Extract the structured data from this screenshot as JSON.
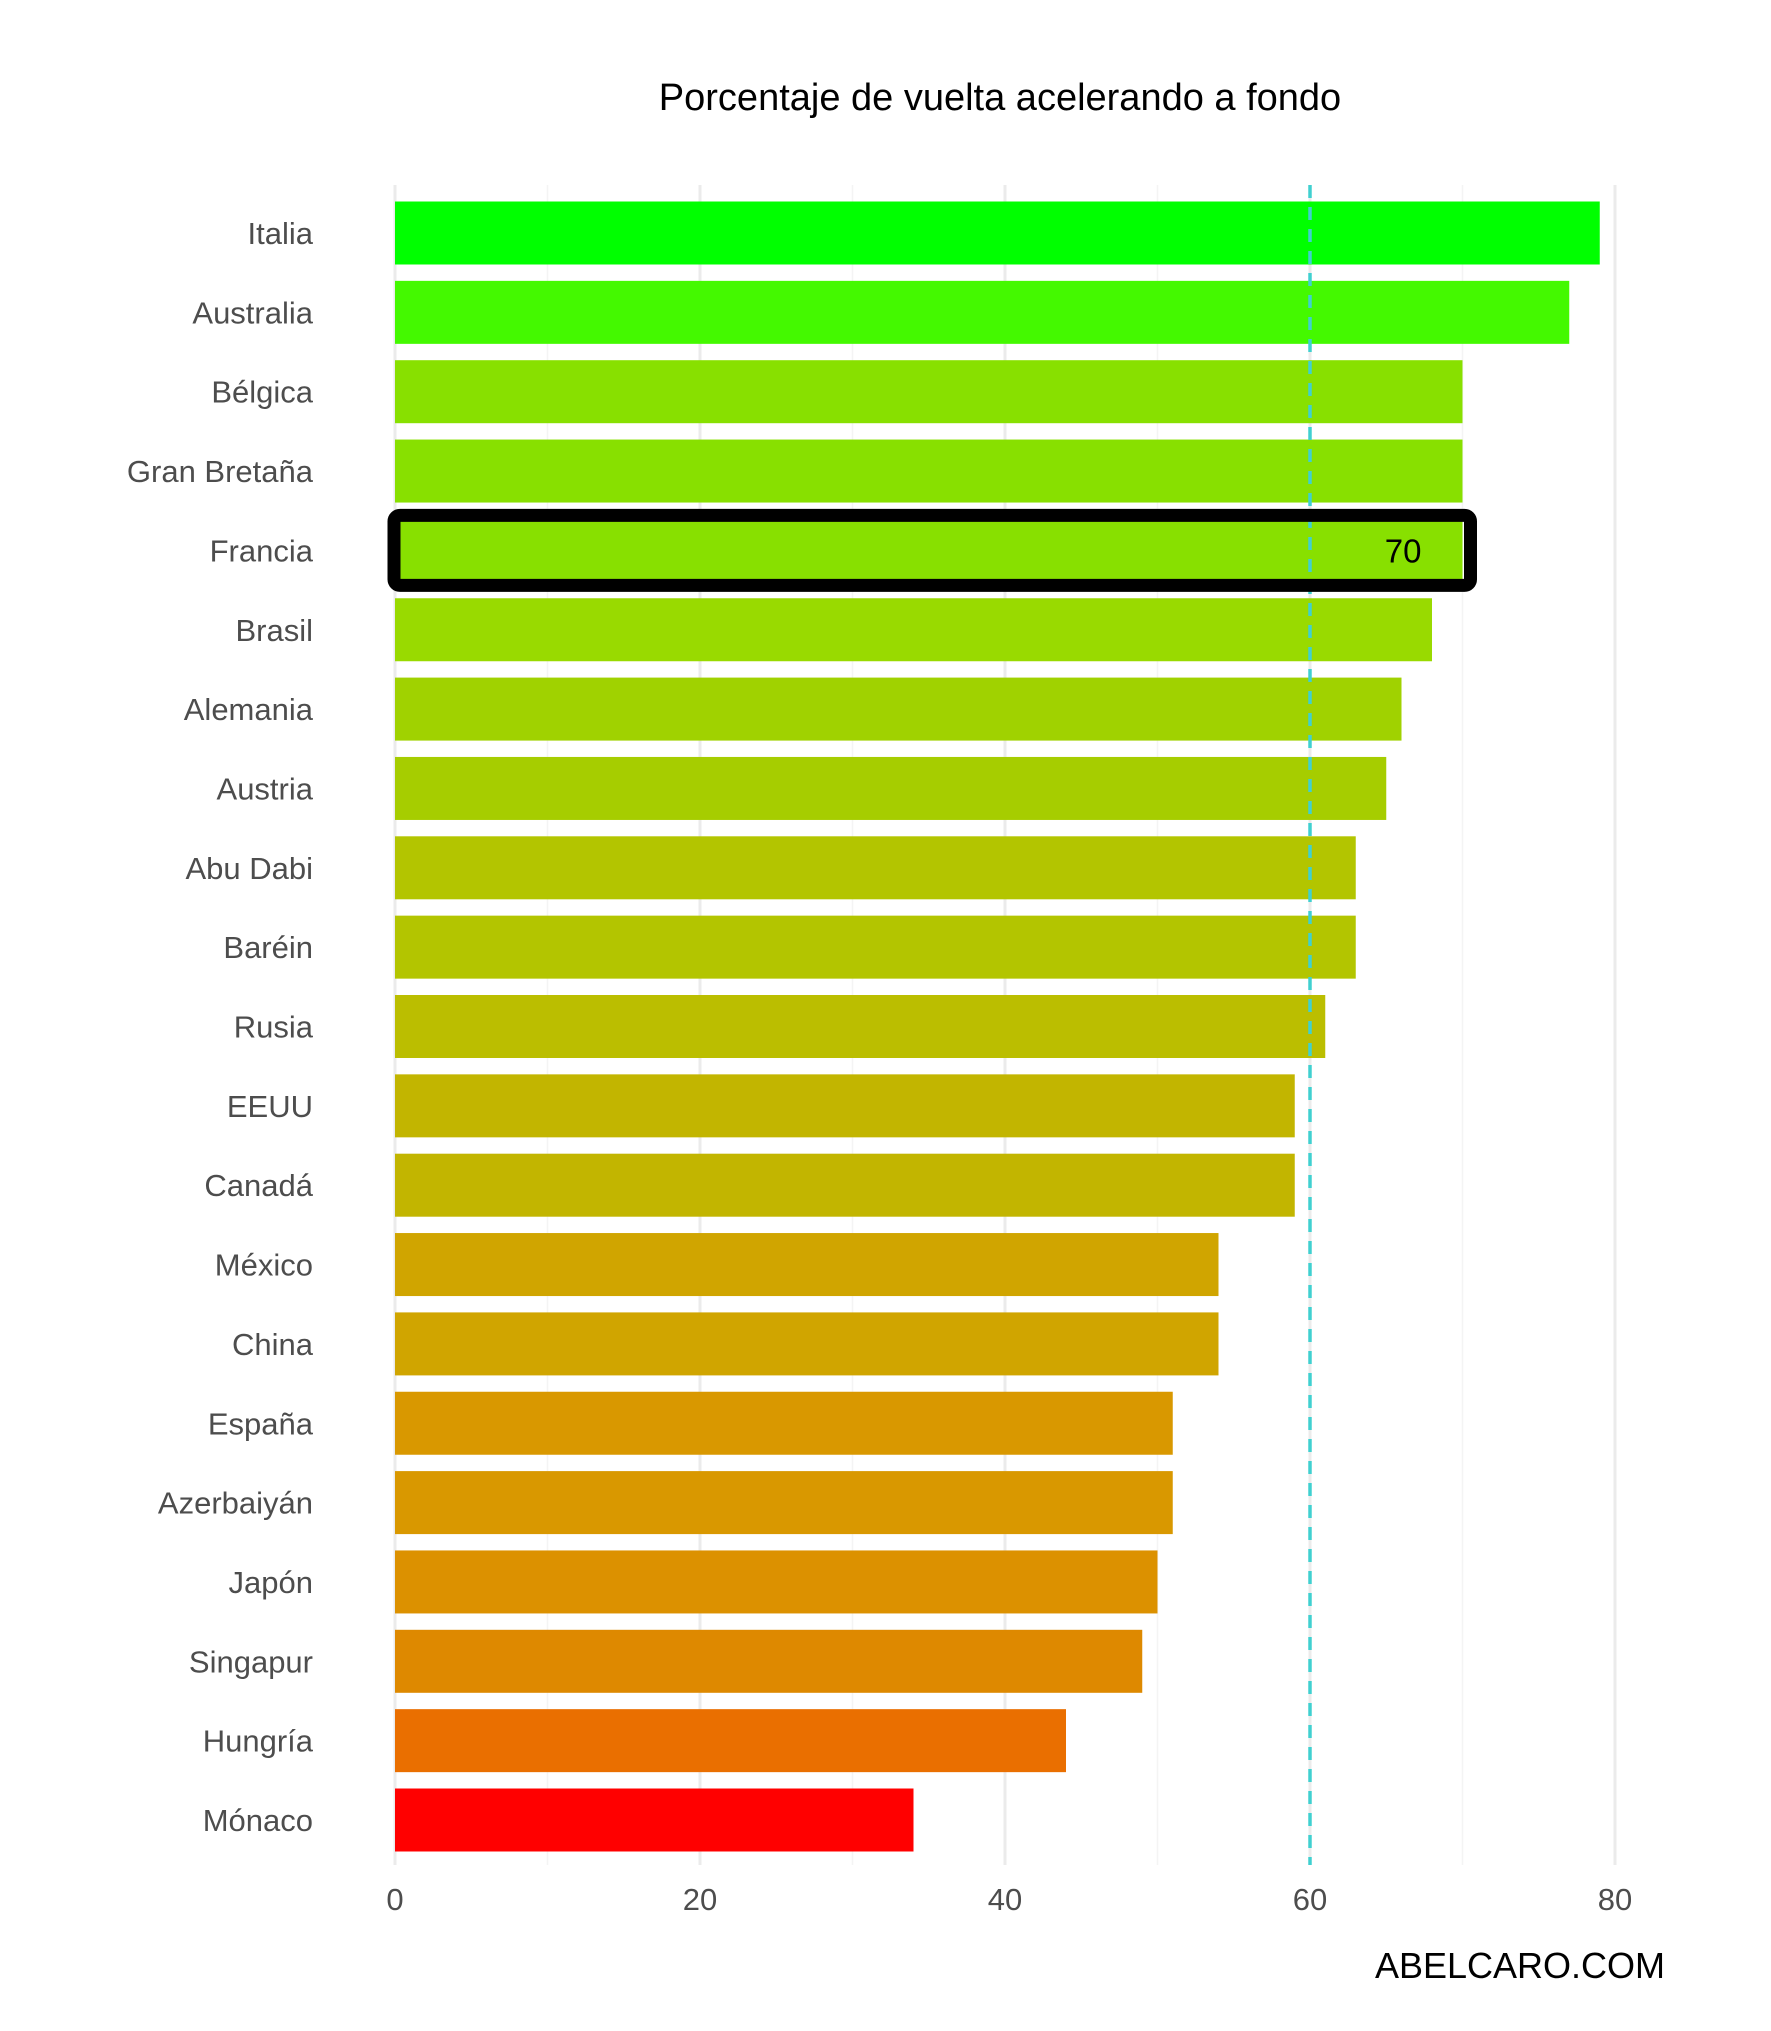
{
  "chart_data": {
    "type": "bar",
    "orientation": "horizontal",
    "title": "Porcentaje de vuelta acelerando a fondo",
    "categories": [
      "Italia",
      "Australia",
      "Bélgica",
      "Gran Bretaña",
      "Francia",
      "Brasil",
      "Alemania",
      "Austria",
      "Abu Dabi",
      "Baréin",
      "Rusia",
      "EEUU",
      "Canadá",
      "México",
      "China",
      "España",
      "Azerbaiyán",
      "Japón",
      "Singapur",
      "Hungría",
      "Mónaco"
    ],
    "values": [
      79,
      77,
      70,
      70,
      70,
      68,
      66,
      65,
      63,
      63,
      61,
      59,
      59,
      54,
      54,
      51,
      51,
      50,
      49,
      44,
      34
    ],
    "colors": [
      "#00ff00",
      "#44f900",
      "#88e000",
      "#88e000",
      "#88e000",
      "#99da00",
      "#a0d200",
      "#a6cd00",
      "#b3c500",
      "#b3c500",
      "#bbbe00",
      "#c2b500",
      "#c2b500",
      "#d0a500",
      "#d0a500",
      "#d99800",
      "#d99800",
      "#dc9100",
      "#de8900",
      "#ea6f00",
      "#ff0000"
    ],
    "xlim": [
      0,
      80
    ],
    "xticks": [
      0,
      20,
      40,
      60,
      80
    ],
    "reference_line": {
      "value": 60,
      "style": "dashed",
      "color": "#40d0d0"
    },
    "highlight": {
      "category": "Francia",
      "label": "70"
    },
    "grid": true,
    "legend": "none"
  },
  "watermark": "ABELCARO.COM"
}
